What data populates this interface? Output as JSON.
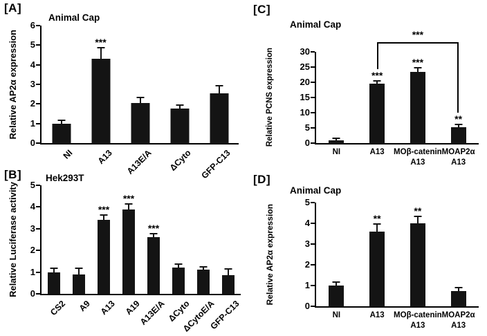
{
  "chart_data": [
    {
      "panel": "[A]",
      "type": "bar",
      "title": "Animal Cap",
      "ylabel": "Relative AP2α expression",
      "xlabel": "",
      "ylim": [
        0,
        6
      ],
      "ytick_step": 1,
      "grid": false,
      "legend": "none",
      "bar_color": "#141414",
      "xlabel_rotated": true,
      "categories": [
        "NI",
        "A13",
        "A13E/A",
        "ΔCyto",
        "GFP-C13"
      ],
      "values": [
        1.0,
        4.3,
        2.05,
        1.75,
        2.55
      ],
      "errors": [
        0.12,
        0.55,
        0.25,
        0.15,
        0.35
      ],
      "sig": [
        "",
        "***",
        "",
        "",
        ""
      ]
    },
    {
      "panel": "[B]",
      "type": "bar",
      "title": "Hek293T",
      "ylabel": "Relative Luciferase activity",
      "xlabel": "",
      "ylim": [
        0,
        5
      ],
      "ytick_step": 1,
      "grid": false,
      "legend": "none",
      "bar_color": "#141414",
      "xlabel_rotated": true,
      "categories": [
        "CS2",
        "A9",
        "A13",
        "A19",
        "A13E/A",
        "ΔCyto",
        "ΔCytoE/A",
        "GFP-C13"
      ],
      "values": [
        1.0,
        0.9,
        3.4,
        3.9,
        2.6,
        1.2,
        1.1,
        0.85
      ],
      "errors": [
        0.15,
        0.25,
        0.2,
        0.2,
        0.15,
        0.15,
        0.1,
        0.25
      ],
      "sig": [
        "",
        "",
        "***",
        "***",
        "***",
        "",
        "",
        ""
      ]
    },
    {
      "panel": "[C]",
      "type": "bar",
      "title": "Animal Cap",
      "ylabel": "Relative PCNS expression",
      "xlabel": "",
      "ylim": [
        0,
        30
      ],
      "ytick_step": 5,
      "grid": false,
      "legend": "none",
      "bar_color": "#141414",
      "xlabel_rotated": false,
      "categories": [
        "NI",
        "A13",
        "MOβ-catenin\nA13",
        "MOAP2α\nA13"
      ],
      "values": [
        1.0,
        19.5,
        23.5,
        5.2
      ],
      "errors": [
        0.3,
        0.8,
        1.0,
        0.8
      ],
      "sig": [
        "",
        "***",
        "***",
        "**"
      ],
      "bracket": {
        "from": 1,
        "to": 3,
        "label": "***",
        "y_offset": -14
      }
    },
    {
      "panel": "[D]",
      "type": "bar",
      "title": "Animal Cap",
      "ylabel": "Relative AP2α expression",
      "xlabel": "",
      "ylim": [
        0,
        5
      ],
      "ytick_step": 1,
      "grid": false,
      "legend": "none",
      "bar_color": "#141414",
      "xlabel_rotated": false,
      "categories": [
        "NI",
        "A13",
        "MOβ-catenin\nA13",
        "MOAP2α\nA13"
      ],
      "values": [
        1.0,
        3.6,
        4.0,
        0.75
      ],
      "errors": [
        0.15,
        0.35,
        0.3,
        0.12
      ],
      "sig": [
        "",
        "**",
        "**",
        ""
      ]
    }
  ]
}
